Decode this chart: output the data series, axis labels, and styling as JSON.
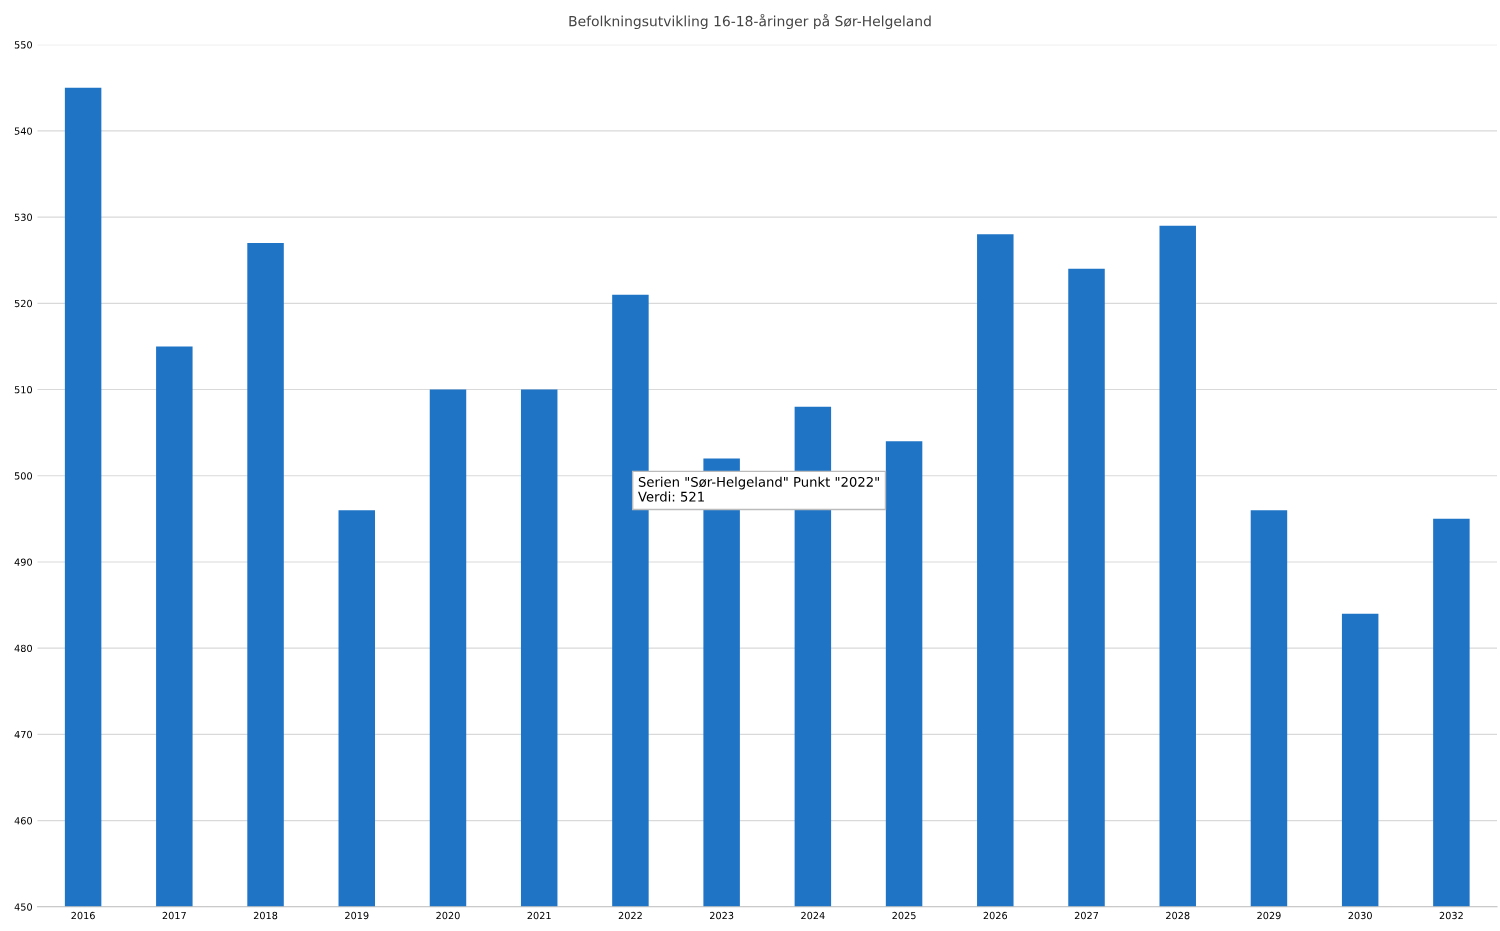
{
  "chart_data": {
    "type": "bar",
    "title": "Befolkningsutvikling 16-18-åringer på Sør-Helgeland",
    "categories": [
      "2016",
      "2017",
      "2018",
      "2019",
      "2020",
      "2021",
      "2022",
      "2023",
      "2024",
      "2025",
      "2026",
      "2027",
      "2028",
      "2029",
      "2030",
      "2032"
    ],
    "series": [
      {
        "color": "#1f74c6",
        "values": [
          545,
          515,
          527,
          496,
          510,
          510,
          521,
          502,
          508,
          504,
          528,
          524,
          529,
          496,
          484,
          495
        ]
      }
    ],
    "ylim": [
      450,
      550
    ],
    "yticks": [
      450,
      460,
      470,
      480,
      490,
      500,
      510,
      520,
      530,
      540,
      550
    ],
    "grid": "y",
    "legend": false,
    "annotations": [
      "Serien \"Sør-Helgeland\" Punkt \"2022\"\nVerdi: 521"
    ]
  }
}
